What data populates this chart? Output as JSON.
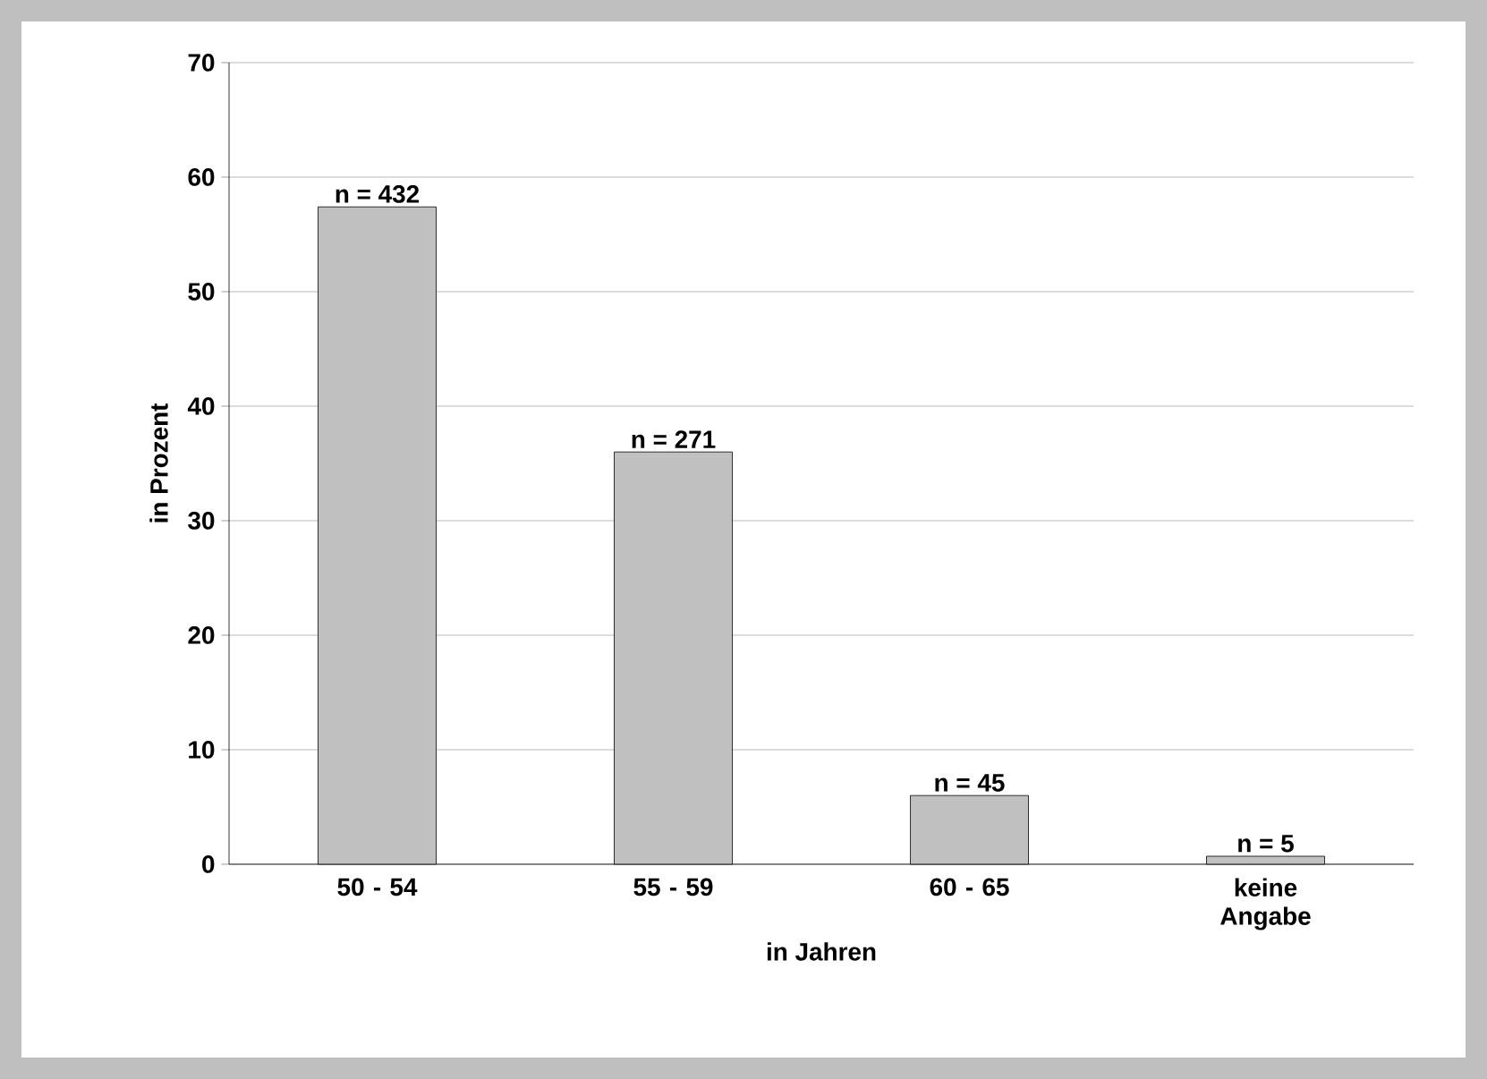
{
  "chart_data": {
    "type": "bar",
    "xlabel": "in Jahren",
    "ylabel": "in Prozent",
    "categories": [
      "50 - 54",
      "55 - 59",
      "60 - 65",
      "keine Angabe"
    ],
    "values": [
      57.4,
      36.0,
      6.0,
      0.7
    ],
    "annotations": [
      {
        "text": "n = 432",
        "x": "50 - 54",
        "y": 57.4
      },
      {
        "text": "n = 271",
        "x": "55 - 59",
        "y": 36.0
      },
      {
        "text": "n = 45",
        "x": "60 - 65",
        "y": 6.0
      },
      {
        "text": "n = 5",
        "x": "keine Angabe",
        "y": 0.7
      }
    ],
    "color": "#c0c0c0",
    "ylim": [
      0,
      70
    ],
    "yticks": [
      0,
      10,
      20,
      30,
      40,
      50,
      60,
      70
    ],
    "grid": "y"
  }
}
